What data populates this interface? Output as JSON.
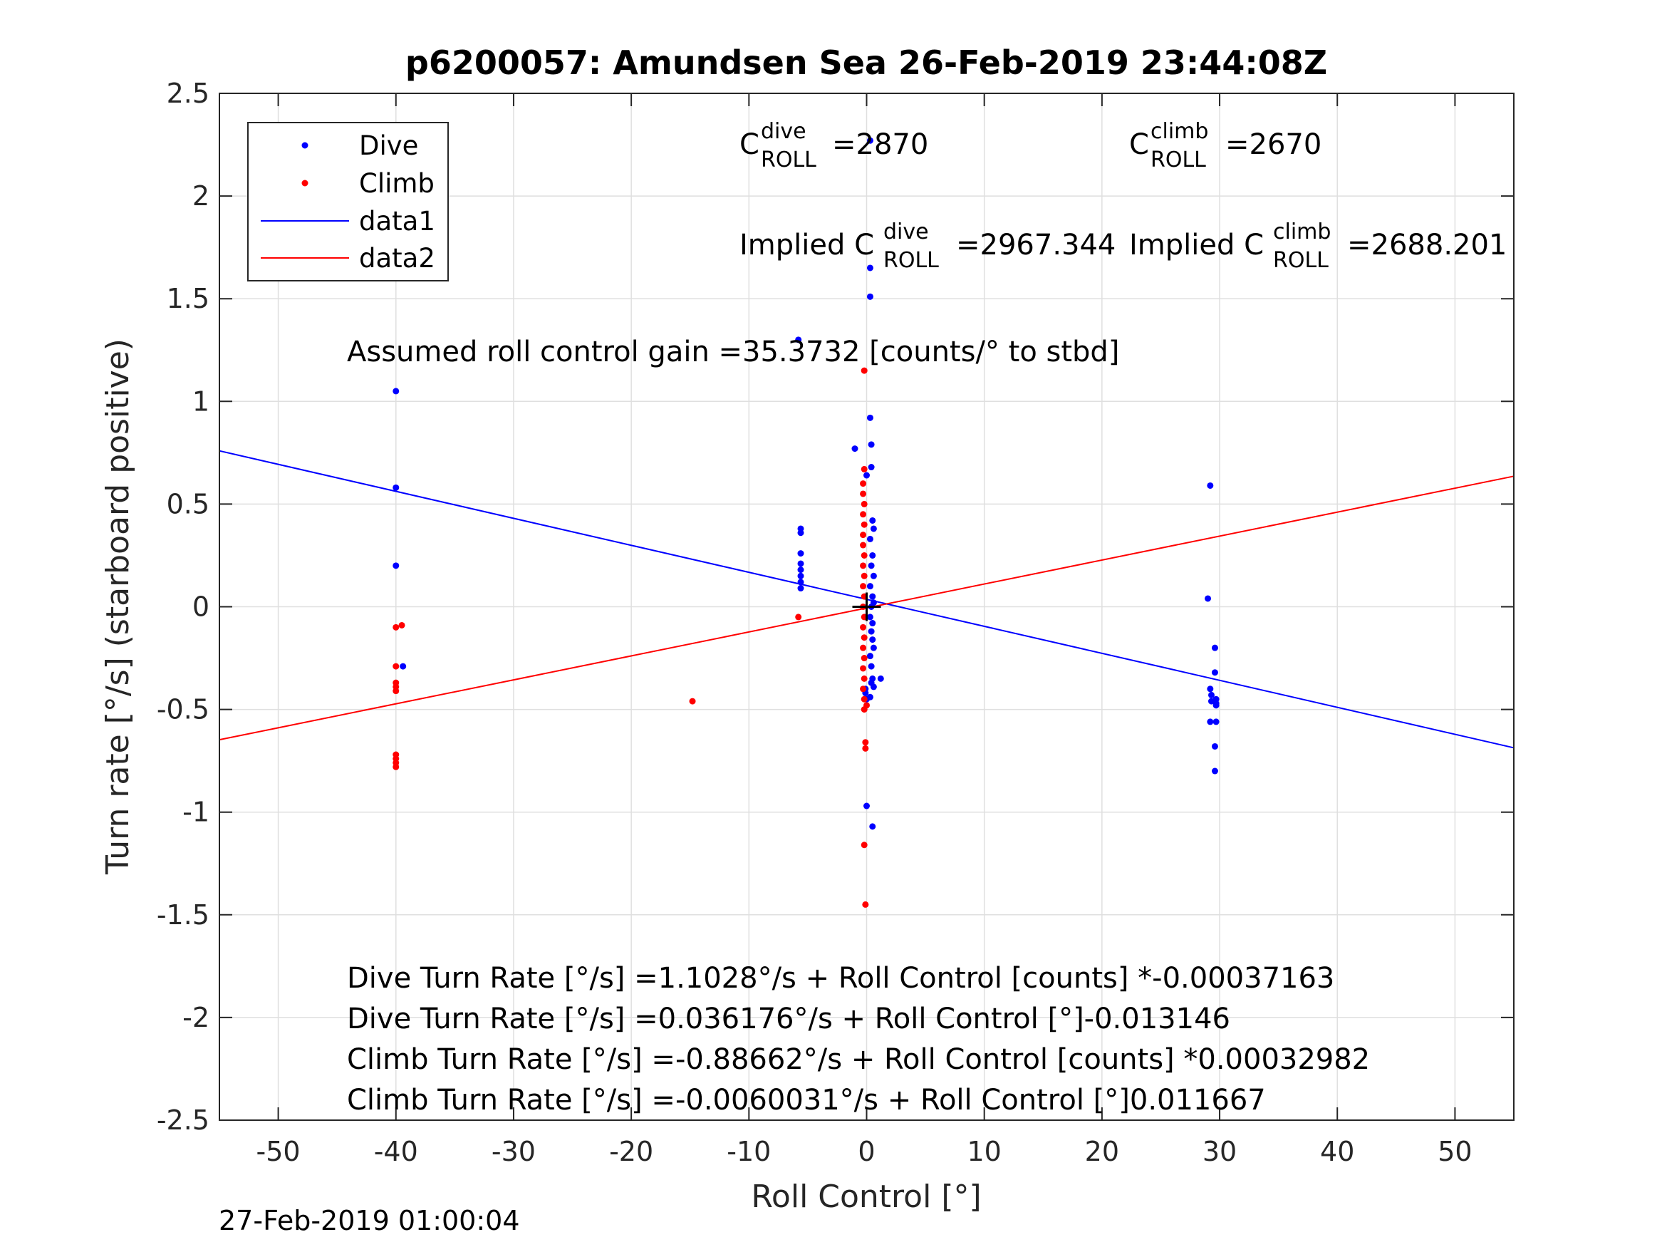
{
  "chart_data": {
    "type": "scatter",
    "title": "p6200057: Amundsen Sea 26-Feb-2019 23:44:08Z",
    "xlabel": "Roll Control [°]",
    "ylabel": "Turn rate [°/s] (starboard positive)",
    "xlim": [
      -55,
      55
    ],
    "ylim": [
      -2.5,
      2.5
    ],
    "xticks": [
      -50,
      -40,
      -30,
      -20,
      -10,
      0,
      10,
      20,
      30,
      40,
      50
    ],
    "yticks": [
      -2.5,
      -2,
      -1.5,
      -1,
      -0.5,
      0,
      0.5,
      1,
      1.5,
      2,
      2.5
    ],
    "grid": true,
    "legend_location": "top-left",
    "colors": {
      "dive": "#0000ff",
      "climb": "#ff0000",
      "axis": "#262626",
      "grid": "#dfdfdf"
    },
    "series": [
      {
        "name": "Dive",
        "kind": "points",
        "color": "#0000ff",
        "x": [
          -40,
          -40,
          -40,
          -39.4,
          0.3,
          0.3,
          0.3,
          0.3,
          0.4,
          0.4,
          -1,
          0,
          -5.6,
          -5.6,
          -5.6,
          -5.6,
          -5.6,
          -5.6,
          -5.6,
          -5.6,
          0.5,
          0.6,
          0.3,
          0.5,
          0.4,
          0.6,
          0.3,
          0.5,
          0.6,
          0.4,
          0.3,
          0.5,
          0.4,
          0.5,
          0.6,
          0.3,
          0.4,
          0.5,
          0.6,
          0.3,
          1.2,
          0.4,
          -0.1,
          0,
          0,
          -0.1,
          0.5,
          29,
          29.2,
          29.6,
          29.6,
          29.2,
          29.3,
          29.7,
          29.3,
          29.7,
          29.2,
          29.7,
          29.6,
          29.6,
          29.7,
          -5.8
        ],
        "y": [
          1.05,
          0.58,
          0.2,
          -0.29,
          2.27,
          1.65,
          1.51,
          0.92,
          0.79,
          0.68,
          0.77,
          0.64,
          0.38,
          0.36,
          0.26,
          0.21,
          0.18,
          0.15,
          0.12,
          0.09,
          0.42,
          0.38,
          0.33,
          0.25,
          0.2,
          0.15,
          0.1,
          0.05,
          0.02,
          0,
          -0.05,
          -0.08,
          -0.12,
          -0.16,
          -0.2,
          -0.24,
          -0.29,
          -0.35,
          -0.39,
          -0.44,
          -0.35,
          -0.37,
          -0.42,
          -0.45,
          -0.97,
          -0.4,
          -1.07,
          0.04,
          0.59,
          -0.2,
          -0.32,
          -0.4,
          -0.43,
          -0.45,
          -0.46,
          -0.48,
          -0.56,
          -0.56,
          -0.68,
          -0.8,
          -0.47,
          1.3
        ],
        "xunit": "°",
        "yunit": "°/s"
      },
      {
        "name": "Climb",
        "kind": "points",
        "color": "#ff0000",
        "x": [
          -40,
          -39.5,
          -40,
          -40,
          -40,
          -40,
          -40,
          -40,
          -40,
          -40,
          -14.8,
          -5.8,
          -0.2,
          -0.3,
          -0.3,
          -0.2,
          -0.3,
          -0.2,
          -0.3,
          -0.3,
          -0.2,
          -0.3,
          -0.2,
          -0.3,
          -0.2,
          -0.3,
          -0.2,
          -0.3,
          -0.2,
          -0.3,
          -0.2,
          -0.3,
          -0.2,
          -0.3,
          -0.2,
          0,
          -0.1,
          -0.1,
          -0.2,
          -0.1,
          -0.2,
          -0.2
        ],
        "y": [
          -0.1,
          -0.09,
          -0.29,
          -0.37,
          -0.39,
          -0.41,
          -0.72,
          -0.74,
          -0.76,
          -0.78,
          -0.46,
          -0.05,
          0.67,
          0.6,
          0.55,
          0.5,
          0.45,
          0.4,
          0.35,
          0.3,
          0.25,
          0.2,
          0.15,
          0.1,
          0.05,
          0,
          -0.05,
          -0.1,
          -0.15,
          -0.2,
          -0.25,
          -0.3,
          -0.35,
          -0.4,
          -0.45,
          -0.48,
          -0.66,
          -0.69,
          -1.16,
          -1.45,
          1.15,
          -0.5
        ],
        "xunit": "°",
        "yunit": "°/s"
      },
      {
        "name": "data1",
        "kind": "line",
        "color": "#0000ff",
        "intercept": 0.036176,
        "slope": -0.013146
      },
      {
        "name": "data2",
        "kind": "line",
        "color": "#ff0000",
        "intercept": -0.0060031,
        "slope": 0.011667
      }
    ],
    "marker": {
      "kind": "plus",
      "x": 0,
      "y": 0,
      "color": "#000000"
    },
    "annotations": {
      "c_dive_base": "C",
      "c_dive_sup": "dive",
      "c_dive_sub": "ROLL",
      "c_dive_value": "=2870",
      "c_climb_base": "C",
      "c_climb_sup": "climb",
      "c_climb_sub": "ROLL",
      "c_climb_value": "=2670",
      "implied_dive_prefix": "Implied C",
      "implied_dive_sup": "dive",
      "implied_dive_sub": "ROLL",
      "implied_dive_value": "=2967.344",
      "implied_climb_prefix": "Implied C",
      "implied_climb_sup": "climb",
      "implied_climb_sub": "ROLL",
      "implied_climb_value": "=2688.201",
      "gain": "Assumed roll control gain =35.3732 [counts/° to stbd]",
      "eq1": "Dive Turn Rate [°/s] =1.1028°/s + Roll Control [counts] *-0.00037163",
      "eq2": "Dive Turn Rate [°/s] =0.036176°/s + Roll Control [°]-0.013146",
      "eq3": "Climb Turn Rate [°/s] =-0.88662°/s + Roll Control [counts] *0.00032982",
      "eq4": "Climb Turn Rate [°/s] =-0.0060031°/s + Roll Control [°]0.011667"
    }
  },
  "footer": {
    "timestamp": "27-Feb-2019 01:00:04"
  }
}
